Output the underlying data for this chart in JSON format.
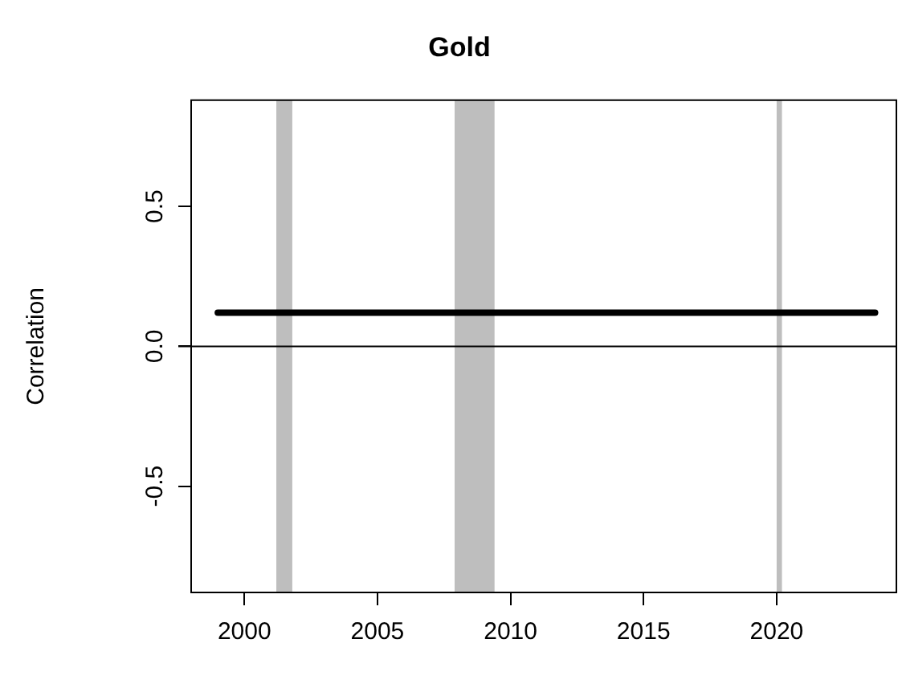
{
  "chart_data": {
    "type": "line",
    "title": "Gold",
    "ylabel": "Correlation",
    "xlim": [
      1998,
      2024.5
    ],
    "xticks": [
      2000,
      2005,
      2010,
      2015,
      2020
    ],
    "ylim": [
      -0.88,
      0.88
    ],
    "yticks": [
      {
        "value": -0.5,
        "label": "-0.5"
      },
      {
        "value": 0,
        "label": "0.0"
      },
      {
        "value": 0.5,
        "label": "0.5"
      }
    ],
    "series": [
      {
        "color": "#000000",
        "x": [
          1999,
          2023.7
        ],
        "values": [
          0.12,
          0.12
        ]
      }
    ],
    "ref_lines": [
      {
        "axis": "y",
        "value": 0,
        "color": "#000000"
      }
    ],
    "bands": [
      {
        "axis": "x",
        "from": 2001.2,
        "to": 2001.8,
        "color": "#bebebe"
      },
      {
        "axis": "x",
        "from": 2007.9,
        "to": 2009.4,
        "color": "#bebebe"
      },
      {
        "axis": "x",
        "from": 2020.0,
        "to": 2020.2,
        "color": "#bebebe"
      }
    ],
    "grid": false,
    "legend": false,
    "marker": "none",
    "line_style": "solid"
  }
}
